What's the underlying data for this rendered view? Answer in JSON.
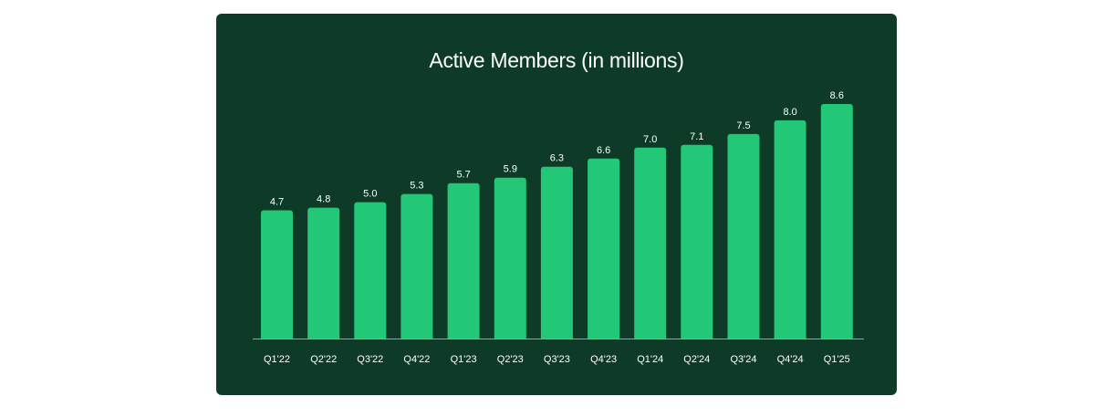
{
  "colors": {
    "background": "#0d3b28",
    "bar": "#22c875",
    "text": "#ffffff",
    "axis": "#8fa89a"
  },
  "chart_data": {
    "type": "bar",
    "title": "Active Members (in millions)",
    "xlabel": "",
    "ylabel": "",
    "categories": [
      "Q1'22",
      "Q2'22",
      "Q3'22",
      "Q4'22",
      "Q1'23",
      "Q2'23",
      "Q3'23",
      "Q4'23",
      "Q1'24",
      "Q2'24",
      "Q3'24",
      "Q4'24",
      "Q1'25"
    ],
    "values": [
      4.7,
      4.8,
      5.0,
      5.3,
      5.7,
      5.9,
      6.3,
      6.6,
      7.0,
      7.1,
      7.5,
      8.0,
      8.6
    ],
    "value_labels": [
      "4.7",
      "4.8",
      "5.0",
      "5.3",
      "5.7",
      "5.9",
      "6.3",
      "6.6",
      "7.0",
      "7.1",
      "7.5",
      "8.0",
      "8.6"
    ],
    "ylim": [
      0,
      8.6
    ],
    "grid": false,
    "legend": "none"
  }
}
